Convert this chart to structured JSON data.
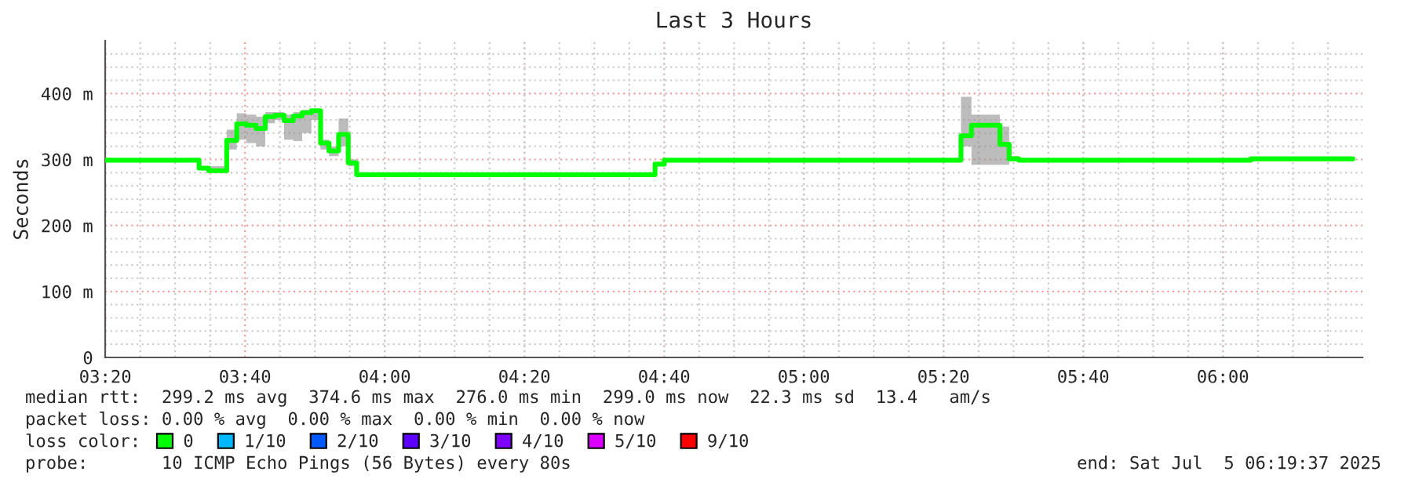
{
  "chart_data": {
    "type": "step",
    "title": "Last 3 Hours",
    "ylabel": "Seconds",
    "x": [
      3.333,
      3.557,
      3.58,
      3.623,
      3.647,
      3.67,
      3.693,
      3.715,
      3.738,
      3.76,
      3.782,
      3.803,
      3.825,
      3.847,
      3.867,
      3.89,
      3.913,
      3.933,
      4.645,
      4.667,
      5.375,
      5.4,
      5.468,
      5.49,
      5.513,
      6.067,
      6.31
    ],
    "series": [
      {
        "name": "0",
        "color": "#00ff00",
        "values": [
          299,
          287,
          283,
          329,
          354,
          352,
          347,
          365,
          367,
          359,
          366,
          371,
          374,
          325,
          313,
          338,
          295,
          277,
          293,
          299,
          336,
          352,
          323,
          301,
          299,
          301,
          301
        ],
        "lower": [
          299,
          285,
          280,
          315,
          330,
          325,
          320,
          355,
          360,
          330,
          328,
          340,
          360,
          315,
          305,
          320,
          290,
          277,
          293,
          299,
          320,
          292,
          292,
          298,
          299,
          301,
          301
        ],
        "upper": [
          299,
          290,
          290,
          345,
          370,
          368,
          365,
          372,
          372,
          368,
          372,
          375,
          376,
          330,
          320,
          362,
          300,
          277,
          293,
          299,
          395,
          368,
          350,
          305,
          299,
          301,
          301
        ]
      },
      {
        "name": "1/10",
        "color": "#00b8ff",
        "values": [
          null,
          null,
          null,
          null,
          null,
          null,
          null,
          null,
          null,
          null,
          null,
          null,
          null,
          null,
          null,
          null,
          null,
          null,
          null,
          null,
          null,
          null,
          null,
          null,
          null,
          null,
          null
        ]
      },
      {
        "name": "2/10",
        "color": "#0059ff",
        "values": [
          null,
          null,
          null,
          null,
          null,
          null,
          null,
          null,
          null,
          null,
          null,
          null,
          null,
          null,
          null,
          null,
          null,
          null,
          null,
          null,
          null,
          null,
          null,
          null,
          null,
          null,
          null
        ]
      },
      {
        "name": "3/10",
        "color": "#5e00ff",
        "values": [
          null,
          null,
          null,
          null,
          null,
          null,
          null,
          null,
          null,
          null,
          null,
          null,
          null,
          null,
          null,
          null,
          null,
          null,
          null,
          null,
          null,
          null,
          null,
          null,
          null,
          null,
          null
        ]
      },
      {
        "name": "4/10",
        "color": "#7e00ff",
        "values": [
          null,
          null,
          null,
          null,
          null,
          null,
          null,
          null,
          null,
          null,
          null,
          null,
          null,
          null,
          null,
          null,
          null,
          null,
          null,
          null,
          null,
          null,
          null,
          null,
          null,
          null,
          null
        ]
      },
      {
        "name": "5/10",
        "color": "#dd00ff",
        "values": [
          null,
          null,
          null,
          null,
          null,
          null,
          null,
          null,
          null,
          null,
          null,
          null,
          null,
          null,
          null,
          null,
          null,
          null,
          null,
          null,
          null,
          null,
          null,
          null,
          null,
          null,
          null
        ]
      },
      {
        "name": "9/10",
        "color": "#ff0000",
        "values": [
          null,
          null,
          null,
          null,
          null,
          null,
          null,
          null,
          null,
          null,
          null,
          null,
          null,
          null,
          null,
          null,
          null,
          null,
          null,
          null,
          null,
          null,
          null,
          null,
          null,
          null,
          null
        ]
      }
    ],
    "legend_title": "loss color:",
    "legend": "bottom",
    "xlim": [
      3.333,
      6.333
    ],
    "xticks": [
      {
        "value": 3.3333,
        "label": "03:20"
      },
      {
        "value": 3.6667,
        "label": "03:40"
      },
      {
        "value": 4.0,
        "label": "04:00"
      },
      {
        "value": 4.3333,
        "label": "04:20"
      },
      {
        "value": 4.6667,
        "label": "04:40"
      },
      {
        "value": 5.0,
        "label": "05:00"
      },
      {
        "value": 5.3333,
        "label": "05:20"
      },
      {
        "value": 5.6667,
        "label": "05:40"
      },
      {
        "value": 6.0,
        "label": "06:00"
      }
    ],
    "ylim": [
      0,
      480
    ],
    "yticks": [
      0,
      {
        "value": 100,
        "label": "100 m"
      },
      {
        "value": 200,
        "label": "200 m"
      },
      {
        "value": 300,
        "label": "300 m"
      },
      {
        "value": 400,
        "label": "400 m"
      }
    ],
    "grid": true,
    "annotations": [
      "median rtt:  299.2 ms avg  374.6 ms max  276.0 ms min  299.0 ms now  22.3 ms sd  13.4   am/s",
      "packet loss: 0.00 % avg  0.00 % max  0.00 % min  0.00 % now",
      "probe:       10 ICMP Echo Pings (56 Bytes) every 80s",
      "end: Sat Jul  5 06:19:37 2025"
    ]
  }
}
